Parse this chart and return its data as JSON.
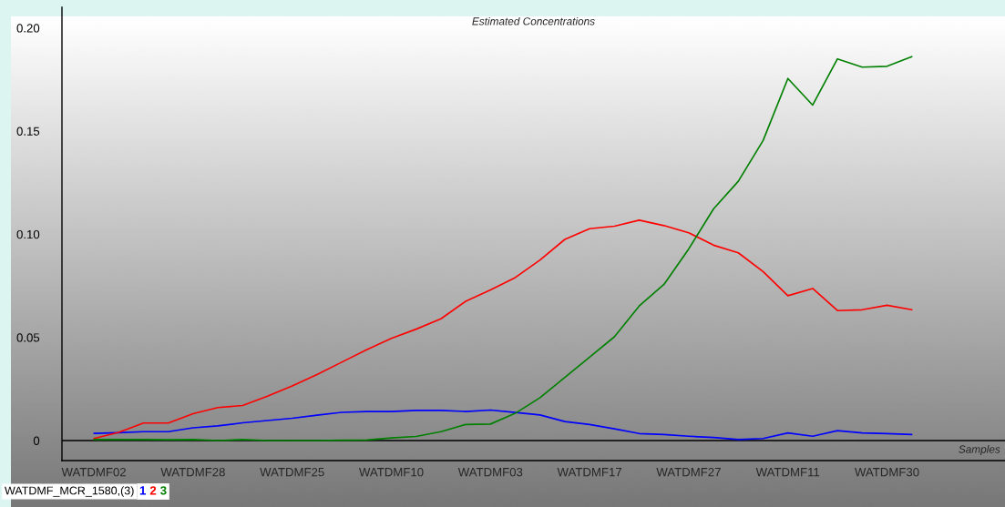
{
  "chart_data": {
    "type": "line",
    "title": "Estimated Concentrations",
    "xlabel": "Samples",
    "legend_title": "WATDMF_MCR_1580,(3)",
    "categories": [
      "WATDMF02",
      null,
      null,
      null,
      "WATDMF28",
      null,
      null,
      null,
      "WATDMF25",
      null,
      null,
      null,
      "WATDMF10",
      null,
      null,
      null,
      "WATDMF03",
      null,
      null,
      null,
      "WATDMF17",
      null,
      null,
      null,
      "WATDMF27",
      null,
      null,
      null,
      "WATDMF11",
      null,
      null,
      null,
      "WATDMF30",
      null
    ],
    "series": [
      {
        "name": "1",
        "color": "#0000ff",
        "values": [
          0.0035,
          0.0038,
          0.0043,
          0.0043,
          0.0062,
          0.0071,
          0.0086,
          0.0097,
          0.0108,
          0.0123,
          0.0137,
          0.0141,
          0.0141,
          0.0146,
          0.0146,
          0.0141,
          0.0148,
          0.0136,
          0.0124,
          0.0092,
          0.0078,
          0.0057,
          0.0034,
          0.0029,
          0.0021,
          0.0015,
          0.0005,
          0.001,
          0.0037,
          0.0021,
          0.0048,
          0.0037,
          0.0034,
          0.0029
        ]
      },
      {
        "name": "2",
        "color": "#ff0000",
        "values": [
          0.001,
          0.004,
          0.0085,
          0.0085,
          0.013,
          0.016,
          0.017,
          0.0215,
          0.0265,
          0.032,
          0.038,
          0.044,
          0.0495,
          0.054,
          0.059,
          0.0675,
          0.073,
          0.079,
          0.0875,
          0.0975,
          0.1027,
          0.1039,
          0.1068,
          0.1042,
          0.1007,
          0.0947,
          0.091,
          0.0819,
          0.0702,
          0.0737,
          0.063,
          0.0634,
          0.0656,
          0.0634
        ]
      },
      {
        "name": "3",
        "color": "#008000",
        "values": [
          0.0005,
          0.0005,
          0.0005,
          0.0004,
          0.0005,
          0.0,
          0.0005,
          0.0,
          0.0,
          0.0,
          0.0002,
          0.0003,
          0.0013,
          0.002,
          0.0043,
          0.0078,
          0.008,
          0.0132,
          0.0208,
          0.0306,
          0.0404,
          0.0503,
          0.0652,
          0.0757,
          0.0929,
          0.1123,
          0.1257,
          0.1454,
          0.1755,
          0.1626,
          0.185,
          0.181,
          0.1814,
          0.1861
        ]
      }
    ],
    "ylim": [
      -0.0097,
      0.21
    ],
    "yticks": [
      0,
      0.05,
      {
        "value": 0.1,
        "label": "0.10"
      },
      0.15,
      {
        "value": 0.2,
        "label": "0.20"
      }
    ],
    "ref_lines": [
      {
        "axis": "y",
        "value": 0,
        "color": "#000000"
      }
    ],
    "legend": "bottom left",
    "grid": false,
    "marker": "none",
    "line_style": "solid"
  }
}
